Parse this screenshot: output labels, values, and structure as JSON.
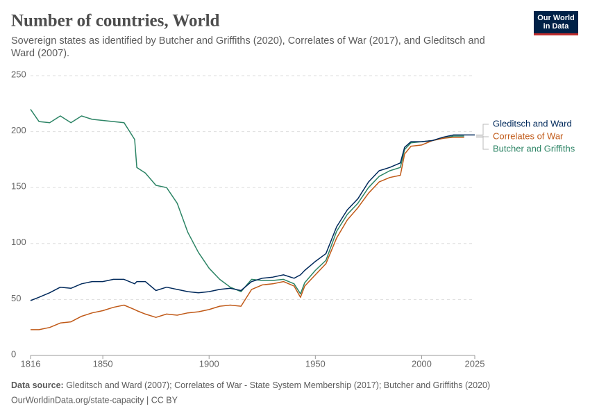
{
  "chart_data": {
    "type": "line",
    "title": "Number of countries, World",
    "subtitle": "Sovereign states as identified by Butcher and Griffiths (2020), Correlates of War (2017), and Gleditsch and Ward (2007).",
    "logo": "Our World in Data",
    "source_label": "Data source:",
    "source": "Gleditsch and Ward (2007); Correlates of War - State System Membership (2017); Butcher and Griffiths (2020)",
    "url_line": "OurWorldinData.org/state-capacity | CC BY",
    "x": [
      1816,
      1820,
      1825,
      1830,
      1835,
      1840,
      1845,
      1850,
      1855,
      1860,
      1865,
      1866,
      1870,
      1875,
      1880,
      1885,
      1890,
      1895,
      1900,
      1905,
      1910,
      1915,
      1920,
      1925,
      1930,
      1935,
      1940,
      1943,
      1945,
      1950,
      1955,
      1960,
      1965,
      1970,
      1975,
      1980,
      1985,
      1990,
      1992,
      1995,
      2000,
      2005,
      2010,
      2015,
      2020,
      2025
    ],
    "xlim": [
      1816,
      2025
    ],
    "xticks": [
      1816,
      1850,
      1900,
      1950,
      2000,
      2025
    ],
    "ylim": [
      0,
      250
    ],
    "yticks": [
      0,
      50,
      100,
      150,
      200,
      250
    ],
    "grid": true,
    "series": [
      {
        "name": "Gleditsch and Ward",
        "color": "#00295b",
        "values": [
          49,
          52,
          56,
          61,
          60,
          64,
          66,
          66,
          68,
          68,
          64,
          66,
          66,
          58,
          61,
          59,
          57,
          56,
          57,
          59,
          60,
          58,
          66,
          69,
          70,
          72,
          69,
          72,
          76,
          84,
          91,
          115,
          130,
          140,
          155,
          165,
          168,
          172,
          186,
          191,
          191,
          192,
          195,
          197,
          197,
          197
        ]
      },
      {
        "name": "Correlates of War",
        "color": "#c05917",
        "values": [
          23,
          23,
          25,
          29,
          30,
          35,
          38,
          40,
          43,
          45,
          41,
          40,
          37,
          34,
          37,
          36,
          38,
          39,
          41,
          44,
          45,
          44,
          59,
          63,
          64,
          66,
          62,
          52,
          62,
          72,
          82,
          105,
          121,
          132,
          145,
          155,
          159,
          161,
          180,
          187,
          188,
          192,
          194,
          195,
          195,
          null
        ]
      },
      {
        "name": "Butcher and Griffiths",
        "color": "#2c8465",
        "values": [
          220,
          209,
          208,
          214,
          208,
          214,
          211,
          210,
          209,
          208,
          193,
          168,
          163,
          152,
          150,
          136,
          110,
          92,
          78,
          68,
          61,
          57,
          68,
          67,
          67,
          68,
          64,
          55,
          65,
          76,
          85,
          111,
          126,
          136,
          150,
          160,
          165,
          168,
          184,
          190,
          191,
          192,
          194,
          196,
          196,
          null
        ]
      }
    ]
  }
}
